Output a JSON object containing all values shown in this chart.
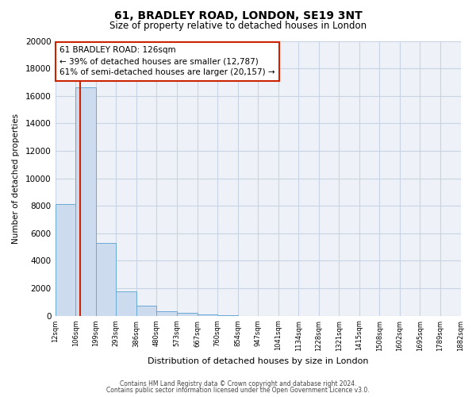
{
  "title": "61, BRADLEY ROAD, LONDON, SE19 3NT",
  "subtitle": "Size of property relative to detached houses in London",
  "xlabel": "Distribution of detached houses by size in London",
  "ylabel": "Number of detached properties",
  "bin_edges": [
    12,
    106,
    199,
    293,
    386,
    480,
    573,
    667,
    760,
    854,
    947,
    1041,
    1134,
    1228,
    1321,
    1415,
    1508,
    1602,
    1695,
    1789,
    1882
  ],
  "bar_heights": [
    8100,
    16600,
    5300,
    1800,
    750,
    300,
    200,
    100,
    50,
    10,
    0,
    0,
    0,
    0,
    0,
    0,
    0,
    0,
    0,
    0
  ],
  "bar_color": "#ccdcee",
  "bar_edge_color": "#6aaad4",
  "property_size": 126,
  "red_line_color": "#cc2200",
  "annotation_text_line1": "61 BRADLEY ROAD: 126sqm",
  "annotation_text_line2": "← 39% of detached houses are smaller (12,787)",
  "annotation_text_line3": "61% of semi-detached houses are larger (20,157) →",
  "annotation_box_facecolor": "#ffffff",
  "annotation_box_edgecolor": "#cc2200",
  "ylim": [
    0,
    20000
  ],
  "yticks": [
    0,
    2000,
    4000,
    6000,
    8000,
    10000,
    12000,
    14000,
    16000,
    18000,
    20000
  ],
  "background_color": "#ffffff",
  "plot_bg_color": "#eef2f8",
  "grid_color": "#c8d4e4",
  "footer_line1": "Contains HM Land Registry data © Crown copyright and database right 2024.",
  "footer_line2": "Contains public sector information licensed under the Open Government Licence v3.0."
}
